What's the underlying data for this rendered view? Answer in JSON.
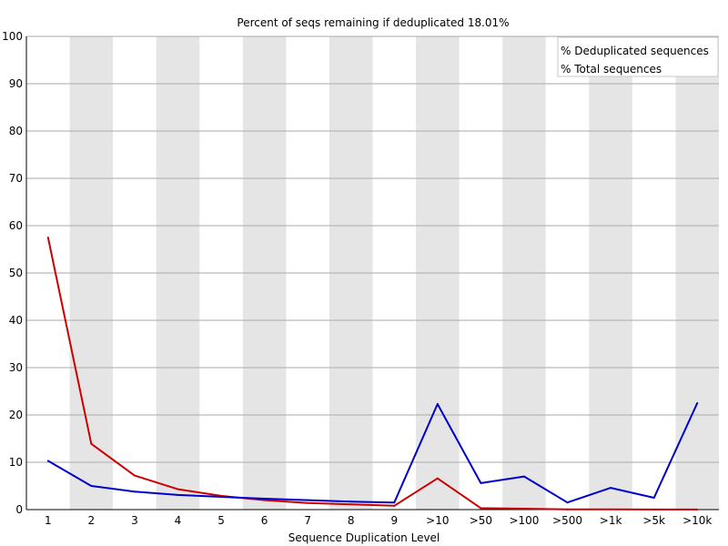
{
  "chart_data": {
    "type": "line",
    "title": "Percent of seqs remaining if deduplicated 18.01%",
    "xlabel": "Sequence Duplication Level",
    "ylabel": "",
    "categories": [
      "1",
      "2",
      "3",
      "4",
      "5",
      "6",
      "7",
      "8",
      "9",
      ">10",
      ">50",
      ">100",
      ">500",
      ">1k",
      ">5k",
      ">10k"
    ],
    "ylim": [
      0,
      100
    ],
    "yticks": [
      0,
      10,
      20,
      30,
      40,
      50,
      60,
      70,
      80,
      90,
      100
    ],
    "grid": true,
    "legend_position": "top-right",
    "series": [
      {
        "name": "% Deduplicated sequences",
        "color": "#cc0000",
        "values": [
          57.5,
          13.9,
          7.2,
          4.3,
          2.9,
          2.0,
          1.4,
          1.1,
          0.8,
          6.6,
          0.3,
          0.2,
          0.05,
          0.05,
          0.02,
          0.02
        ]
      },
      {
        "name": "% Total sequences",
        "color": "#0000cc",
        "values": [
          10.3,
          5.0,
          3.8,
          3.1,
          2.7,
          2.3,
          2.0,
          1.7,
          1.5,
          22.3,
          5.6,
          7.0,
          1.5,
          4.6,
          2.5,
          22.5
        ]
      }
    ]
  }
}
